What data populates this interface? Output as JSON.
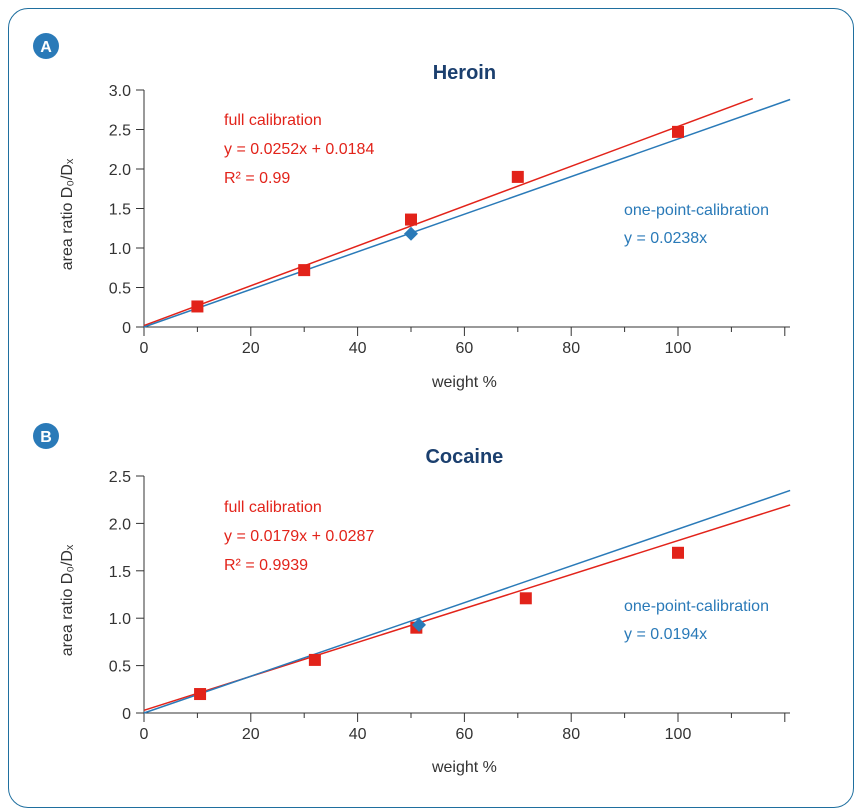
{
  "colors": {
    "full_calibration": "#e2231a",
    "one_point": "#2a7ab8",
    "title": "#1b3f6e",
    "badge": "#2a7ab8",
    "axis": "#333333",
    "frame": "#1f6f9f"
  },
  "chart_data": [
    {
      "panel": "A",
      "type": "scatter",
      "title": "Heroin",
      "xlabel": "weight %",
      "ylabel": "area ratio D₀/Dₓ",
      "xlim": [
        0,
        120
      ],
      "ylim": [
        0,
        3.0
      ],
      "xticks": [
        0,
        20,
        40,
        60,
        80,
        100
      ],
      "yticks": [
        0,
        0.5,
        1.0,
        1.5,
        2.0,
        2.5,
        3.0
      ],
      "ytick_labels": [
        "0",
        "0.5",
        "1.0",
        "1.5",
        "2.0",
        "2.5",
        "3.0"
      ],
      "series": [
        {
          "name": "full calibration",
          "marker": "square",
          "points": [
            [
              10,
              0.26
            ],
            [
              30,
              0.72
            ],
            [
              50,
              1.36
            ],
            [
              70,
              1.9
            ],
            [
              100,
              2.47
            ]
          ],
          "fit": {
            "slope": 0.0252,
            "intercept": 0.0184,
            "x_end": 114
          },
          "annotation": [
            "full calibration",
            "y = 0.0252x + 0.0184",
            "R² = 0.99"
          ]
        },
        {
          "name": "one-point-calibration",
          "marker": "diamond",
          "points": [
            [
              50,
              1.18
            ]
          ],
          "fit": {
            "slope": 0.0238,
            "intercept": 0,
            "x_end": 121
          },
          "annotation": [
            "one-point-calibration",
            "y = 0.0238x"
          ]
        }
      ]
    },
    {
      "panel": "B",
      "type": "scatter",
      "title": "Cocaine",
      "xlabel": "weight %",
      "ylabel": "area ratio D₀/Dₓ",
      "xlim": [
        0,
        120
      ],
      "ylim": [
        0,
        2.5
      ],
      "xticks": [
        0,
        20,
        40,
        60,
        80,
        100
      ],
      "yticks": [
        0,
        0.5,
        1.0,
        1.5,
        2.0,
        2.5
      ],
      "ytick_labels": [
        "0",
        "0.5",
        "1.0",
        "1.5",
        "2.0",
        "2.5"
      ],
      "series": [
        {
          "name": "full calibration",
          "marker": "square",
          "points": [
            [
              10.5,
              0.2
            ],
            [
              32,
              0.56
            ],
            [
              51,
              0.9
            ],
            [
              71.5,
              1.21
            ],
            [
              100,
              1.69
            ]
          ],
          "fit": {
            "slope": 0.0179,
            "intercept": 0.0287,
            "x_end": 121
          },
          "annotation": [
            "full calibration",
            "y = 0.0179x + 0.0287",
            "R² = 0.9939"
          ]
        },
        {
          "name": "one-point-calibration",
          "marker": "diamond",
          "points": [
            [
              51.5,
              0.93
            ]
          ],
          "fit": {
            "slope": 0.0194,
            "intercept": 0,
            "x_end": 121
          },
          "annotation": [
            "one-point-calibration",
            "y = 0.0194x"
          ]
        }
      ]
    }
  ]
}
